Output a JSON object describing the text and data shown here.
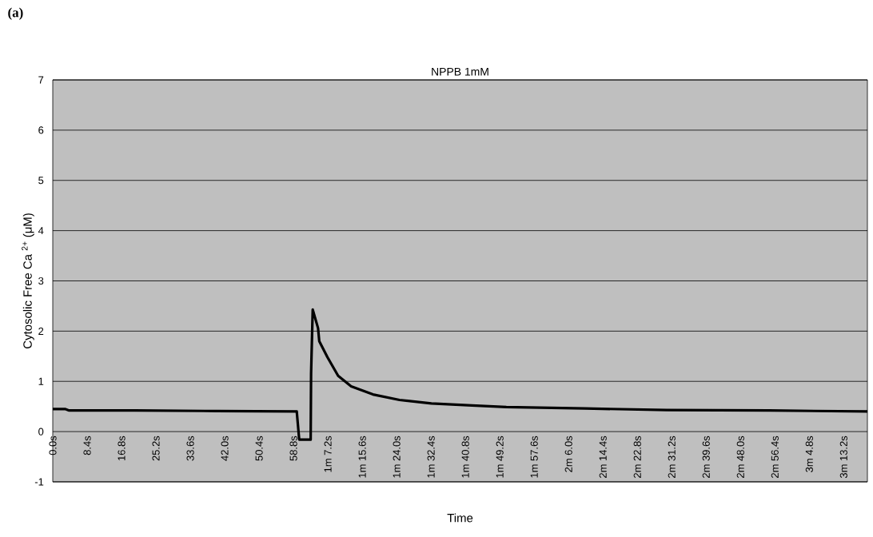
{
  "chart_data": {
    "type": "line",
    "title": "NPPB 1mM",
    "xlabel": "Time",
    "ylabel": "Cytosolic Free Ca $^{2+}$ (μM)",
    "annotations": [
      "(a)"
    ],
    "x": [
      0,
      3,
      4,
      20,
      40,
      59.6,
      60.2,
      63.0,
      63.1,
      63.5,
      64.8,
      65.1,
      67.1,
      69.7,
      72.9,
      78.2,
      84.7,
      92.5,
      102.4,
      110.8,
      130,
      150,
      175,
      199
    ],
    "series": [
      {
        "color": "#000000",
        "values": [
          0.45,
          0.45,
          0.42,
          0.42,
          0.41,
          0.4,
          -0.16,
          -0.16,
          1.16,
          2.43,
          2.06,
          1.8,
          1.48,
          1.11,
          0.9,
          0.74,
          0.63,
          0.56,
          0.52,
          0.49,
          0.46,
          0.43,
          0.42,
          0.4
        ]
      }
    ],
    "xlim": [
      0,
      199
    ],
    "ylim": [
      -1,
      7
    ],
    "yticks": [
      -1,
      0,
      1,
      2,
      3,
      4,
      5,
      6,
      7
    ],
    "xticks": [
      {
        "value": 0,
        "label": "0.0s"
      },
      {
        "value": 8.4,
        "label": "8.4s"
      },
      {
        "value": 16.8,
        "label": "16.8s"
      },
      {
        "value": 25.2,
        "label": "25.2s"
      },
      {
        "value": 33.6,
        "label": "33.6s"
      },
      {
        "value": 42.0,
        "label": "42.0s"
      },
      {
        "value": 50.4,
        "label": "50.4s"
      },
      {
        "value": 58.8,
        "label": "58.8s"
      },
      {
        "value": 67.2,
        "label": "1m 7.2s"
      },
      {
        "value": 75.6,
        "label": "1m 15.6s"
      },
      {
        "value": 84.0,
        "label": "1m 24.0s"
      },
      {
        "value": 92.4,
        "label": "1m 32.4s"
      },
      {
        "value": 100.8,
        "label": "1m 40.8s"
      },
      {
        "value": 109.2,
        "label": "1m 49.2s"
      },
      {
        "value": 117.6,
        "label": "1m 57.6s"
      },
      {
        "value": 126.0,
        "label": "2m 6.0s"
      },
      {
        "value": 134.4,
        "label": "2m 14.4s"
      },
      {
        "value": 142.8,
        "label": "2m 22.8s"
      },
      {
        "value": 151.2,
        "label": "2m 31.2s"
      },
      {
        "value": 159.6,
        "label": "2m 39.6s"
      },
      {
        "value": 168.0,
        "label": "2m 48.0s"
      },
      {
        "value": 176.4,
        "label": "2m 56.4s"
      },
      {
        "value": 184.8,
        "label": "3m 4.8s"
      },
      {
        "value": 193.2,
        "label": "3m 13.2s"
      }
    ],
    "grid": "y",
    "marker": "none",
    "line_style": "solid"
  }
}
